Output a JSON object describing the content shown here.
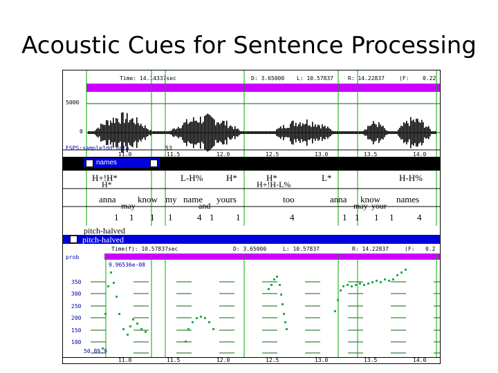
{
  "slide": {
    "title": "Acoustic Cues for Sentence Processing"
  },
  "waveform": {
    "time_label": "Time: 14.14337sec",
    "d_label": "D: 3.65000",
    "l_label": "L: 10.57837",
    "r_label": "R: 14.22837",
    "f_label": "(F:",
    "edge_value": "0.22",
    "amp_top": "5000",
    "amp_zero": "0",
    "file_name": "ESPS:sample1dd.data",
    "mark_label": "53",
    "ticks": [
      "11.0",
      "11.5",
      "12.0",
      "12.5",
      "13.0",
      "13.5",
      "14.0"
    ]
  },
  "labels_window": {
    "title": "names",
    "tones_row1": [
      "H+!H*",
      "L-H%",
      "H*",
      "H*",
      "L*",
      "H-H%"
    ],
    "tones_row2": [
      "H*",
      "H+!H-L%"
    ],
    "words_row1": [
      "anna",
      "know",
      "my",
      "name",
      "yours",
      "too",
      "anna",
      "know",
      "names"
    ],
    "words_row2": [
      "may",
      "and",
      "may",
      "your"
    ],
    "breaks": [
      "1",
      "1",
      "1",
      "1",
      "4",
      "1",
      "1",
      "4",
      "1",
      "1",
      "1",
      "1",
      "4"
    ]
  },
  "pitch": {
    "window_label": "pitch-halved",
    "title": "pitch-halved",
    "time_label": "Time(f): 10.57837sec",
    "d_label": "D: 3.65000",
    "l_label": "L: 10.57837",
    "r_label": "R: 14.22837",
    "f_label": "(F:",
    "edge_value": "0.2",
    "y_label": "prob",
    "cursor_value": "9.96536e-08",
    "y_ticks": [
      "350",
      "300",
      "250",
      "200",
      "150",
      "100",
      "50"
    ],
    "y_min_label": "50 89.9",
    "x_ticks": [
      "11.0",
      "11.5",
      "12.0",
      "12.5",
      "13.0",
      "13.5",
      "14.0"
    ]
  },
  "colors": {
    "highlight": "#cc00ff",
    "grid": "#006600",
    "cursor": "#00aa00",
    "titlebar": "#0000dd"
  }
}
